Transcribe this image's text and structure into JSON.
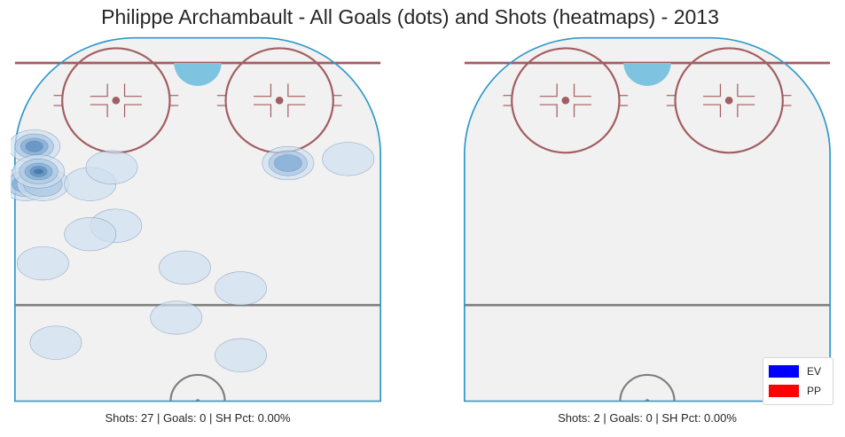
{
  "title": "Philippe Archambault - All Goals (dots) and Shots (heatmaps) - 2013",
  "colors": {
    "rink_fill": "#f1f1f1",
    "boards": "#2e99c9",
    "red_line": "#a25d61",
    "center_line": "#7f7f7f",
    "crease": "#7ec3e0",
    "heat_scale": [
      "#cfe0ef",
      "#a9c8e3",
      "#7eaad4",
      "#5a8dbf",
      "#3e6e9e"
    ],
    "ev": "#0000ff",
    "pp": "#ff0000"
  },
  "chart_data": [
    {
      "type": "heatmap",
      "panel": "left",
      "subtitle": "Shots: 27 | Goals: 0 | SH Pct: 0.00%",
      "goals": [],
      "shot_density": [
        {
          "x": -33,
          "y": 73,
          "level": 1
        },
        {
          "x": -36,
          "y": 54,
          "level": 1
        },
        {
          "x": -19,
          "y": 45,
          "level": 1
        },
        {
          "x": -25,
          "y": 47,
          "level": 1
        },
        {
          "x": -5,
          "y": 67,
          "level": 1
        },
        {
          "x": -3,
          "y": 55,
          "level": 1
        },
        {
          "x": -40,
          "y": 35,
          "level": 3
        },
        {
          "x": -36,
          "y": 35,
          "level": 2
        },
        {
          "x": -38,
          "y": 26,
          "level": 4
        },
        {
          "x": -37,
          "y": 32,
          "level": 5
        },
        {
          "x": -25,
          "y": 35,
          "level": 1
        },
        {
          "x": -20,
          "y": 31,
          "level": 1
        },
        {
          "x": 21,
          "y": 30,
          "level": 3
        },
        {
          "x": 35,
          "y": 29,
          "level": 1
        },
        {
          "x": 10,
          "y": 60,
          "level": 1
        },
        {
          "x": 10,
          "y": 76,
          "level": 1
        }
      ]
    },
    {
      "type": "heatmap",
      "panel": "right",
      "subtitle": "Shots: 2 | Goals: 0 | SH Pct: 0.00%",
      "goals": [],
      "shot_density": [],
      "legend": [
        {
          "label": "EV",
          "color": "#0000ff"
        },
        {
          "label": "PP",
          "color": "#ff0000"
        }
      ]
    }
  ]
}
